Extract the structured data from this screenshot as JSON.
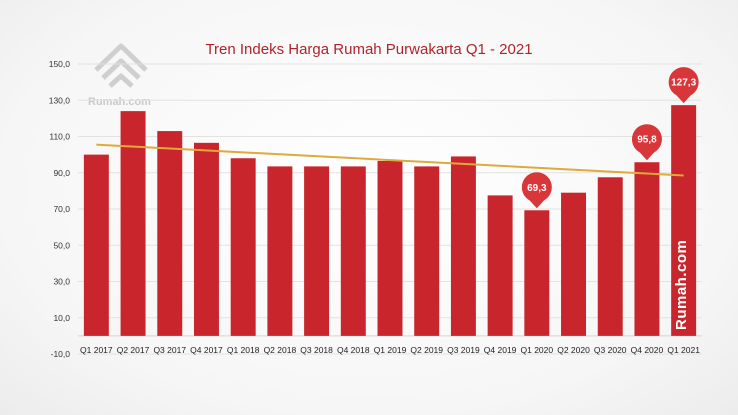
{
  "chart_data": {
    "type": "bar",
    "title": "Tren Indeks Harga Rumah Purwakarta Q1 - 2021",
    "categories": [
      "Q1 2017",
      "Q2 2017",
      "Q3 2017",
      "Q4 2017",
      "Q1 2018",
      "Q2 2018",
      "Q3 2018",
      "Q4 2018",
      "Q1 2019",
      "Q2 2019",
      "Q3 2019",
      "Q4 2019",
      "Q1 2020",
      "Q2 2020",
      "Q3 2020",
      "Q4 2020",
      "Q1 2021"
    ],
    "values": [
      100.0,
      124.0,
      113.0,
      106.5,
      98.0,
      93.5,
      93.5,
      93.5,
      96.5,
      93.5,
      99.0,
      77.5,
      69.3,
      79.0,
      87.5,
      95.8,
      127.3
    ],
    "ylim": [
      -10,
      150
    ],
    "yticks": [
      "-10,0",
      "10,0",
      "30,0",
      "50,0",
      "70,0",
      "90,0",
      "110,0",
      "130,0",
      "150,0"
    ],
    "ytick_values": [
      -10,
      10,
      30,
      50,
      70,
      90,
      110,
      130,
      150
    ],
    "grid": true,
    "bar_color": "#c8262c",
    "trendline": {
      "color": "#e0a93a",
      "start_value": 105.5,
      "end_value": 88.5
    },
    "callouts": [
      {
        "category_index": 12,
        "label": "69,3"
      },
      {
        "category_index": 15,
        "label": "95,8"
      },
      {
        "category_index": 16,
        "label": "127,3"
      }
    ],
    "callout_color": "#d9363a"
  },
  "branding": {
    "watermark": "Rumah.com",
    "vertical_brand": "Rumah.com",
    "watermark_icon": "house-logo-icon"
  }
}
